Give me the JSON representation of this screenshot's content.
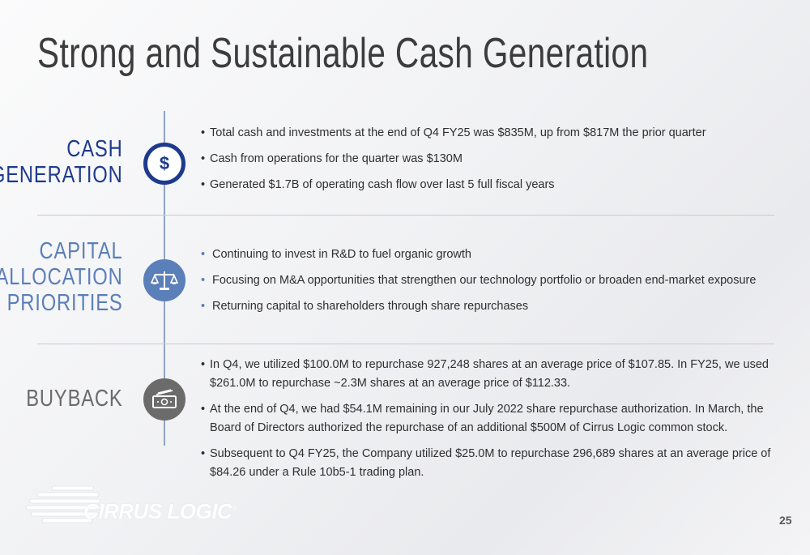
{
  "title": "Strong and Sustainable Cash Generation",
  "sections": [
    {
      "label": "CASH\nGENERATION",
      "color": "#1e3a8c",
      "icon": "dollar-icon",
      "bullets": [
        "Total cash and investments at the end of Q4 FY25 was $835M, up from $817M the prior quarter",
        "Cash from operations for the quarter was $130M",
        "Generated $1.7B of operating cash flow over last 5 full fiscal years"
      ]
    },
    {
      "label": "CAPITAL\nALLOCATION\nPRIORITIES",
      "color": "#5b7fb8",
      "icon": "scales-icon",
      "bullets": [
        "Continuing to invest in R&D to fuel organic growth",
        "Focusing on M&A opportunities that strengthen our technology portfolio or broaden end-market exposure",
        "Returning capital to shareholders through share repurchases"
      ]
    },
    {
      "label": "BUYBACK",
      "color": "#6b6b6b",
      "icon": "cash-icon",
      "bullets": [
        "In Q4, we utilized $100.0M to repurchase 927,248 shares at an average price of $107.85. In FY25, we used $261.0M to repurchase ~2.3M shares at an average price of $112.33.",
        "At the end of Q4, we had $54.1M remaining in our July 2022 share repurchase authorization. In March, the Board of Directors authorized the repurchase of an additional $500M of Cirrus Logic common stock.",
        "Subsequent to Q4 FY25, the Company utilized $25.0M to repurchase 296,689 shares at an average price of $84.26 under a Rule 10b5-1 trading plan."
      ]
    }
  ],
  "logo": {
    "text": "CIRRUS LOGIC",
    "mark": "®"
  },
  "page_number": "25"
}
